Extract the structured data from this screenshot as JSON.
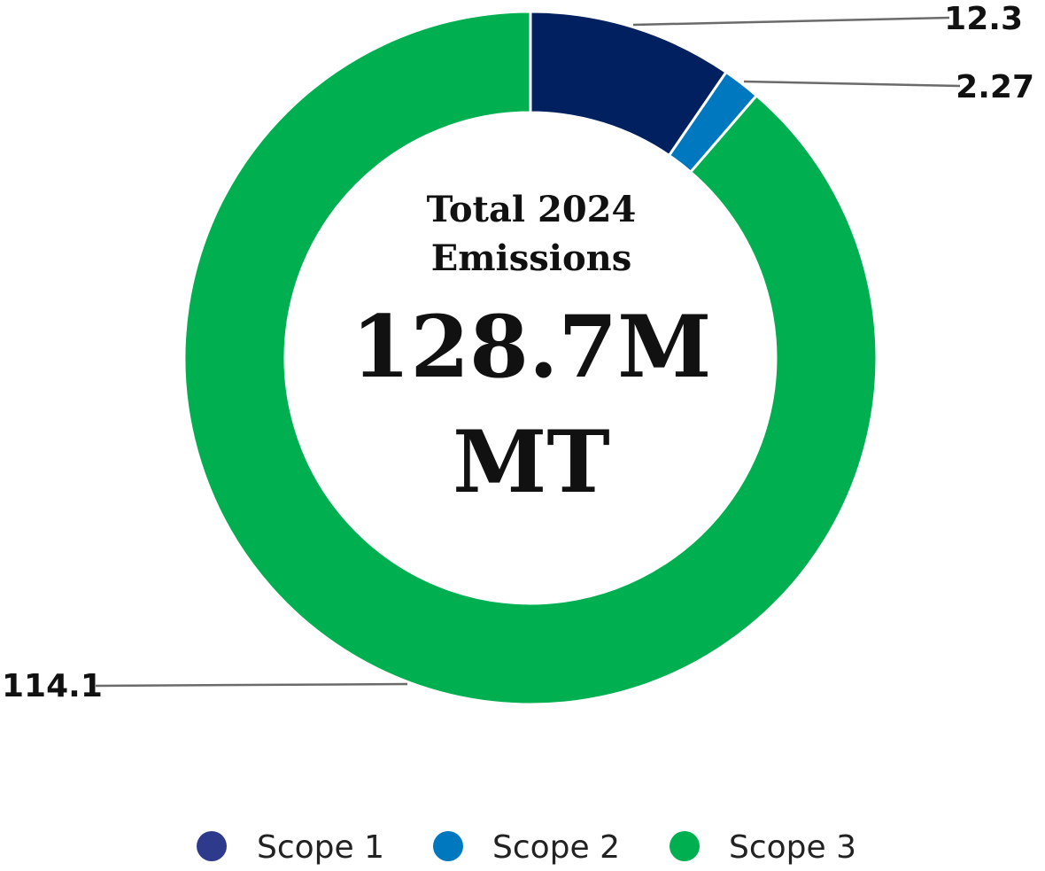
{
  "chart_data": {
    "type": "pie",
    "donut": true,
    "center_title_lines": [
      "Total 2024",
      "Emissions"
    ],
    "center_value_lines": [
      "128.7M",
      "MT"
    ],
    "categories": [
      "Scope 1",
      "Scope 2",
      "Scope 3"
    ],
    "values": [
      12.3,
      2.27,
      114.1
    ],
    "data_labels": [
      "12.3",
      "2.27",
      "114.1"
    ],
    "colors": [
      "#002060",
      "#0078BF",
      "#00B050"
    ],
    "legend": {
      "position": "bottom",
      "items": [
        {
          "label": "Scope 1",
          "color": "#2E3A8C"
        },
        {
          "label": "Scope 2",
          "color": "#0078BF"
        },
        {
          "label": "Scope 3",
          "color": "#00B050"
        }
      ]
    }
  }
}
